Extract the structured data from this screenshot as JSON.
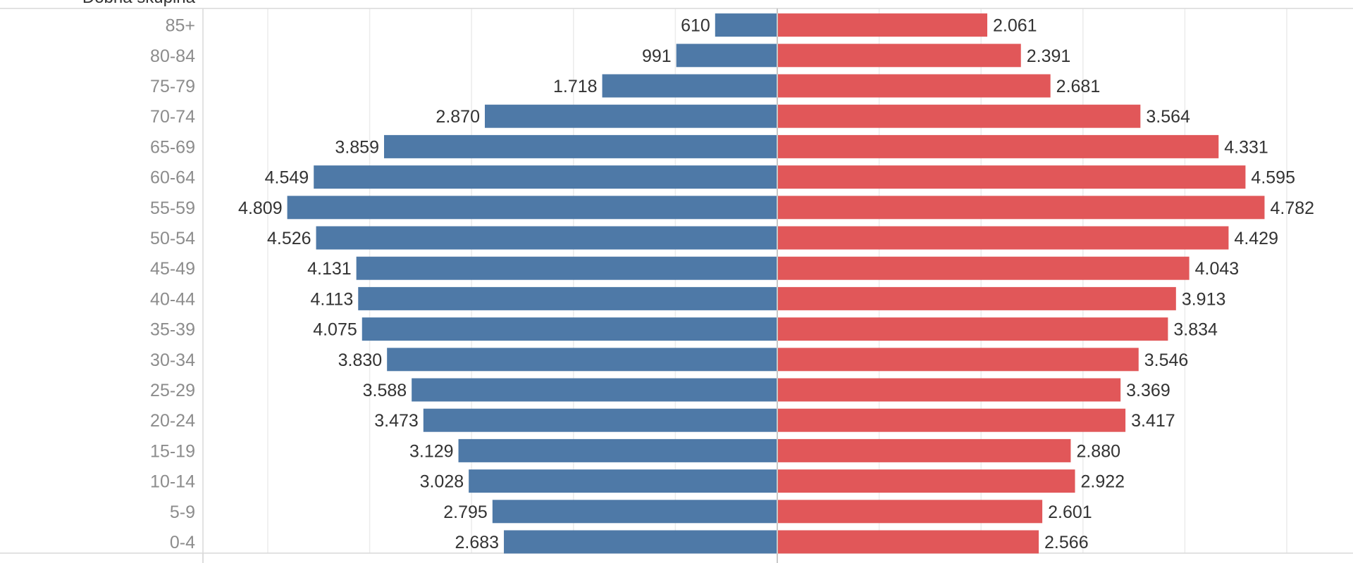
{
  "chart_data": {
    "type": "bar",
    "orientation": "horizontal-population-pyramid",
    "header": "Dobna skupina",
    "categories": [
      "85+",
      "80-84",
      "75-79",
      "70-74",
      "65-69",
      "60-64",
      "55-59",
      "50-54",
      "45-49",
      "40-44",
      "35-39",
      "30-34",
      "25-29",
      "20-24",
      "15-19",
      "10-14",
      "5-9",
      "0-4"
    ],
    "series": [
      {
        "name": "left",
        "color": "#4e79a7",
        "values": [
          610,
          991,
          1718,
          2870,
          3859,
          4549,
          4809,
          4526,
          4131,
          4113,
          4075,
          3830,
          3588,
          3473,
          3129,
          3028,
          2795,
          2683
        ],
        "labels": [
          "610",
          "991",
          "1.718",
          "2.870",
          "3.859",
          "4.549",
          "4.809",
          "4.526",
          "4.131",
          "4.113",
          "4.075",
          "3.830",
          "3.588",
          "3.473",
          "3.129",
          "3.028",
          "2.795",
          "2.683"
        ]
      },
      {
        "name": "right",
        "color": "#e15759",
        "values": [
          2061,
          2391,
          2681,
          3564,
          4331,
          4595,
          4782,
          4429,
          4043,
          3913,
          3834,
          3546,
          3369,
          3417,
          2880,
          2922,
          2601,
          2566
        ],
        "labels": [
          "2.061",
          "2.391",
          "2.681",
          "3.564",
          "4.331",
          "4.595",
          "4.782",
          "4.429",
          "4.043",
          "3.913",
          "3.834",
          "3.546",
          "3.369",
          "3.417",
          "2.880",
          "2.922",
          "2.601",
          "2.566"
        ]
      }
    ],
    "xlim": [
      -5600,
      5600
    ],
    "grid": true,
    "legend": "none"
  }
}
